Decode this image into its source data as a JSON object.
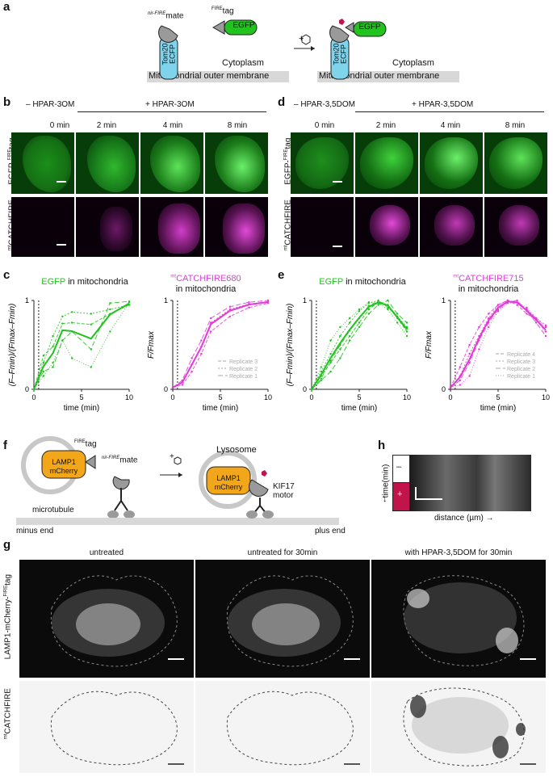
{
  "panels": {
    "a": "a",
    "b": "b",
    "c": "c",
    "d": "d",
    "e": "e",
    "f": "f",
    "g": "g",
    "h": "h"
  },
  "a": {
    "mate_label_sup": "nir-FIRE",
    "mate_label": "mate",
    "tag_label_sup": "FIRE",
    "tag_label": "tag",
    "egfp": "EGFP",
    "tom20": "Tom20",
    "ecfp": "ECFP",
    "cytoplasm": "Cytoplasm",
    "membrane": "Mitochondrial outer membrane",
    "plus": "+"
  },
  "b": {
    "minus_label": "– HPAR-3OM",
    "plus_label": "+ HPAR-3OM",
    "times": [
      "0 min",
      "2 min",
      "4 min",
      "8 min"
    ],
    "row1_label": "EGFP-",
    "row1_sup": "FIRE",
    "row1_tail": "tag",
    "row2_sup": "mt",
    "row2_label": "CATCHFIRE"
  },
  "d": {
    "minus_label": "– HPAR-3,5DOM",
    "plus_label": "+ HPAR-3,5DOM",
    "times": [
      "0 min",
      "2 min",
      "4 min",
      "8 min"
    ]
  },
  "c": {
    "left_title": "EGFP",
    "left_title_tail": "in mitochondria",
    "right_title_sup": "mt",
    "right_title": "CATCHFIRE680",
    "right_title_tail": "in mitochondria",
    "ylabel_left": "(F–Fmin)/(Fmax–Fmin)",
    "ylabel_right": "F/Fmax",
    "xlabel": "time (min)"
  },
  "e": {
    "left_title": "EGFP",
    "left_title_tail": "in mitochondria",
    "right_title_sup": "mt",
    "right_title": "CATCHFIRE715",
    "right_title_tail": "in mitochondria",
    "ylabel_left": "(F–Fmin)/(Fmax–Fmin)",
    "ylabel_right": "F/Fmax",
    "xlabel": "time (min)"
  },
  "f": {
    "tag_sup": "FIRE",
    "tag": "tag",
    "mate_sup": "nir-FIRE",
    "mate": "mate",
    "lamp1": "LAMP1",
    "mcherry": "mCherry",
    "microtubule": "microtubule",
    "minus_end": "minus end",
    "plus_end": "plus end",
    "lysosome": "Lysosome",
    "kif17": "KIF17",
    "motor": "motor",
    "plus": "+"
  },
  "h": {
    "minus": "–",
    "plus": "+",
    "time_label": "time(min)",
    "distance_label": "distance (µm)"
  },
  "g": {
    "cols": [
      "untreated",
      "untreated for 30min",
      "with HPAR-3,5DOM for 30min"
    ],
    "row1_label": "LAMP1-mCherry-",
    "row1_sup": "FIRE",
    "row1_tail": "tag",
    "row2_sup": "mt",
    "row2_label": "CATCHFIRE"
  },
  "colors": {
    "green": "#22c21f",
    "magenta": "#e23ad8",
    "cyan": "#7fd3ea",
    "orange": "#f2a71b",
    "crimson": "#c0144a"
  },
  "chart_data": [
    {
      "type": "line",
      "panel": "c-left",
      "title": "EGFP in mitochondria",
      "xlabel": "time (min)",
      "ylabel": "(F–Fmin)/(Fmax–Fmin)",
      "xlim": [
        0,
        10
      ],
      "ylim": [
        0,
        1
      ],
      "xticks": [
        0,
        5,
        10
      ],
      "yticks": [
        0,
        1
      ],
      "series": [
        {
          "x": [
            0,
            1,
            2,
            3,
            4,
            6,
            8,
            10
          ],
          "values": [
            0,
            0.38,
            0.48,
            0.74,
            0.75,
            0.73,
            0.85,
            0.95
          ]
        },
        {
          "x": [
            0,
            1,
            2,
            3,
            4,
            6,
            8,
            10
          ],
          "values": [
            0,
            0.3,
            0.6,
            0.82,
            0.87,
            0.85,
            0.9,
            0.95
          ]
        },
        {
          "x": [
            0,
            1,
            2,
            3,
            4,
            6,
            8,
            10
          ],
          "values": [
            0,
            0.2,
            0.25,
            0.55,
            0.65,
            0.45,
            0.97,
            0.99
          ]
        },
        {
          "x": [
            0,
            1,
            2,
            3,
            4,
            6,
            8,
            10
          ],
          "values": [
            0,
            0.15,
            0.3,
            0.55,
            0.35,
            0.25,
            0.65,
            0.98
          ]
        }
      ]
    },
    {
      "type": "line",
      "panel": "c-right",
      "title": "mtCATCHFIRE680 in mitochondria",
      "xlabel": "time (min)",
      "ylabel": "F/Fmax",
      "xlim": [
        0,
        10
      ],
      "ylim": [
        0,
        1
      ],
      "xticks": [
        0,
        5,
        10
      ],
      "yticks": [
        0,
        1
      ],
      "legend": [
        "Replicate 3",
        "Replicate 2",
        "Replicate 1"
      ],
      "series": [
        {
          "name": "Replicate 3",
          "x": [
            0,
            1,
            2,
            3,
            4,
            6,
            8,
            10
          ],
          "values": [
            0.02,
            0.05,
            0.2,
            0.4,
            0.65,
            0.82,
            0.92,
            0.97
          ]
        },
        {
          "name": "Replicate 2",
          "x": [
            0,
            1,
            2,
            3,
            4,
            6,
            8,
            10
          ],
          "values": [
            0.02,
            0.08,
            0.28,
            0.48,
            0.75,
            0.9,
            0.96,
            0.98
          ]
        },
        {
          "name": "Replicate 1",
          "x": [
            0,
            1,
            2,
            3,
            4,
            6,
            8,
            10
          ],
          "values": [
            0.02,
            0.1,
            0.35,
            0.55,
            0.8,
            0.93,
            0.98,
            1.0
          ]
        }
      ]
    },
    {
      "type": "line",
      "panel": "e-left",
      "title": "EGFP in mitochondria",
      "xlabel": "time (min)",
      "ylabel": "(F–Fmin)/(Fmax–Fmin)",
      "xlim": [
        0,
        10
      ],
      "ylim": [
        0,
        1
      ],
      "xticks": [
        0,
        5,
        10
      ],
      "yticks": [
        0,
        1
      ],
      "series": [
        {
          "x": [
            0,
            1,
            2,
            3,
            4,
            5,
            6,
            7,
            8,
            9,
            10
          ],
          "values": [
            0,
            0.15,
            0.3,
            0.45,
            0.6,
            0.75,
            0.9,
            0.98,
            0.95,
            0.8,
            0.65
          ]
        },
        {
          "x": [
            0,
            1,
            2,
            3,
            4,
            5,
            6,
            7,
            8,
            9,
            10
          ],
          "values": [
            0,
            0.2,
            0.4,
            0.6,
            0.75,
            0.88,
            0.97,
            1.0,
            0.92,
            0.82,
            0.7
          ]
        },
        {
          "x": [
            0,
            1,
            2,
            3,
            4,
            5,
            6,
            7,
            8,
            9,
            10
          ],
          "values": [
            0,
            0.1,
            0.2,
            0.35,
            0.55,
            0.7,
            0.85,
            0.95,
            1.0,
            0.85,
            0.75
          ]
        },
        {
          "x": [
            0,
            1,
            2,
            3,
            4,
            5,
            6,
            7,
            8,
            9,
            10
          ],
          "values": [
            0,
            0.25,
            0.55,
            0.7,
            0.8,
            0.9,
            0.98,
            0.97,
            0.9,
            0.75,
            0.6
          ]
        },
        {
          "x": [
            0,
            1,
            2,
            3,
            4,
            5,
            6,
            7,
            8,
            9,
            10
          ],
          "values": [
            0,
            0.12,
            0.32,
            0.5,
            0.66,
            0.8,
            0.94,
            0.99,
            0.95,
            0.82,
            0.68
          ]
        }
      ]
    },
    {
      "type": "line",
      "panel": "e-right",
      "title": "mtCATCHFIRE715 in mitochondria",
      "xlabel": "time (min)",
      "ylabel": "F/Fmax",
      "xlim": [
        0,
        10
      ],
      "ylim": [
        0,
        1
      ],
      "xticks": [
        0,
        5,
        10
      ],
      "yticks": [
        0,
        1
      ],
      "legend": [
        "Replicate 4",
        "Replicate 3",
        "Replicate 2",
        "Replicate 1"
      ],
      "series": [
        {
          "name": "Replicate 4",
          "x": [
            0,
            1,
            2,
            3,
            4,
            5,
            6,
            7,
            8,
            9,
            10
          ],
          "values": [
            0.02,
            0.25,
            0.5,
            0.7,
            0.85,
            0.95,
            1.0,
            0.95,
            0.85,
            0.78,
            0.65
          ]
        },
        {
          "name": "Replicate 3",
          "x": [
            0,
            1,
            2,
            3,
            4,
            5,
            6,
            7,
            8,
            9,
            10
          ],
          "values": [
            0.02,
            0.15,
            0.4,
            0.6,
            0.8,
            0.95,
            1.0,
            0.98,
            0.9,
            0.8,
            0.72
          ]
        },
        {
          "name": "Replicate 2",
          "x": [
            0,
            1,
            2,
            3,
            4,
            5,
            6,
            7,
            8,
            9,
            10
          ],
          "values": [
            0.02,
            0.1,
            0.3,
            0.55,
            0.75,
            0.9,
            0.98,
            1.0,
            0.88,
            0.75,
            0.6
          ]
        },
        {
          "name": "Replicate 1",
          "x": [
            0,
            1,
            2,
            3,
            4,
            5,
            6,
            7,
            8,
            9,
            10
          ],
          "values": [
            0.02,
            0.05,
            0.15,
            0.45,
            0.7,
            0.88,
            0.97,
            0.98,
            0.92,
            0.8,
            0.7
          ]
        }
      ]
    }
  ]
}
